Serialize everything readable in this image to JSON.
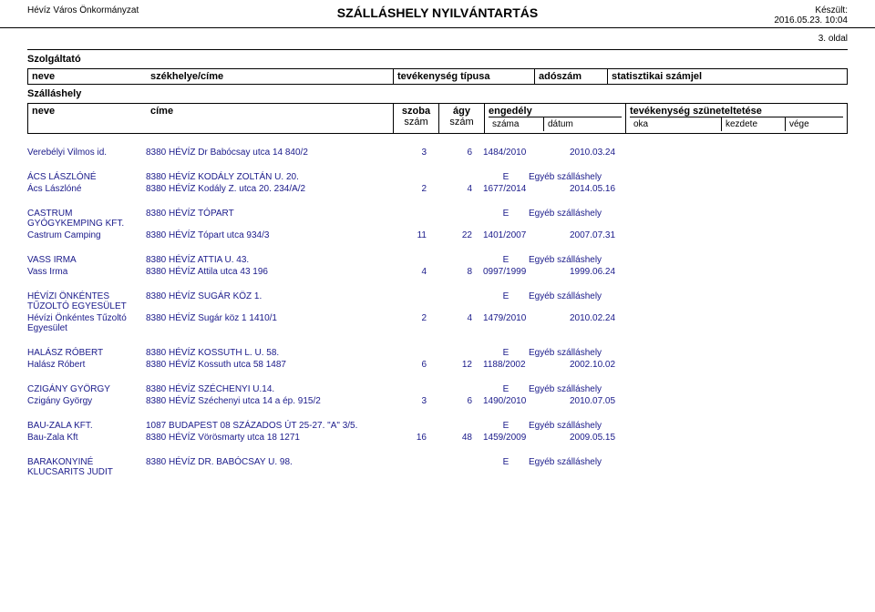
{
  "header": {
    "org": "Hévíz Város Önkormányzat",
    "title": "SZÁLLÁSHELY NYILVÁNTARTÁS",
    "made_label": "Készült:",
    "made_date": "2016.05.23. 10:04",
    "page": "3. oldal"
  },
  "table_header": {
    "szolgaltato": "Szolgáltató",
    "neve": "neve",
    "szekhelye": "székhelye/címe",
    "tevekenyseg": "tevékenység típusa",
    "adoszam": "adószám",
    "stat": "statisztikai számjel",
    "szallashely": "Szálláshely",
    "cime": "címe",
    "szoba": "szoba",
    "szoba2": "szám",
    "agy": "ágy",
    "agy2": "szám",
    "engedely": "engedély",
    "szama": "száma",
    "datum": "dátum",
    "szunet": "tevékenység szüneteltetése",
    "oka": "oka",
    "kezdete": "kezdete",
    "vege": "vége"
  },
  "groups": [
    {
      "r1": {
        "name": "Verebélyi Vilmos id.",
        "addr": "8380 HÉVÍZ Dr Babócsay utca 14  840/2",
        "n1": "3",
        "n2": "6",
        "eng": "1484/2010",
        "date": "2010.03.24"
      }
    },
    {
      "r0": {
        "name": "ÁCS LÁSZLÓNÉ",
        "addr": "8380 HÉVÍZ KODÁLY ZOLTÁN U. 20.",
        "mark": "E",
        "etype": "Egyéb szálláshely"
      },
      "r1": {
        "name": "Ács Lászlóné",
        "addr": "8380 HÉVÍZ Kodály Z. utca 20.  234/A/2",
        "n1": "2",
        "n2": "4",
        "eng": "1677/2014",
        "date": "2014.05.16"
      }
    },
    {
      "r0": {
        "name": "CASTRUM GYÓGYKEMPING KFT.",
        "addr": "8380 HÉVÍZ TÓPART",
        "mark": "E",
        "etype": "Egyéb szálláshely"
      },
      "r1": {
        "name": "Castrum Camping",
        "addr": "8380 HÉVÍZ Tópart utca  934/3",
        "n1": "11",
        "n2": "22",
        "eng": "1401/2007",
        "date": "2007.07.31"
      }
    },
    {
      "r0": {
        "name": "VASS IRMA",
        "addr": "8380 HÉVÍZ ATTIA U. 43.",
        "mark": "E",
        "etype": "Egyéb szálláshely"
      },
      "r1": {
        "name": "Vass Irma",
        "addr": "8380 HÉVÍZ Attila utca 43  196",
        "n1": "4",
        "n2": "8",
        "eng": "0997/1999",
        "date": "1999.06.24"
      }
    },
    {
      "r0": {
        "name": "HÉVÍZI ÖNKÉNTES TŰZOLTÓ EGYESÜLET",
        "addr": "8380 HÉVÍZ SUGÁR  KÖZ 1.",
        "mark": "E",
        "etype": "Egyéb szálláshely"
      },
      "r1": {
        "name": "Hévízi Önkéntes Tűzoltó Egyesület",
        "addr": "8380 HÉVÍZ Sugár köz 1  1410/1",
        "n1": "2",
        "n2": "4",
        "eng": "1479/2010",
        "date": "2010.02.24"
      }
    },
    {
      "r0": {
        "name": "HALÁSZ RÓBERT",
        "addr": "8380 HÉVÍZ KOSSUTH L. U. 58.",
        "mark": "E",
        "etype": "Egyéb szálláshely"
      },
      "r1": {
        "name": "Halász Róbert",
        "addr": "8380 HÉVÍZ Kossuth utca 58  1487",
        "n1": "6",
        "n2": "12",
        "eng": "1188/2002",
        "date": "2002.10.02"
      }
    },
    {
      "r0": {
        "name": "CZIGÁNY GYÖRGY",
        "addr": "8380 HÉVÍZ SZÉCHENYI U.14.",
        "mark": "E",
        "etype": "Egyéb szálláshely"
      },
      "r1": {
        "name": "Czigány György",
        "addr": "8380 HÉVÍZ Széchenyi utca 14 a ép.  915/2",
        "n1": "3",
        "n2": "6",
        "eng": "1490/2010",
        "date": "2010.07.05"
      }
    },
    {
      "r0": {
        "name": "BAU-ZALA KFT.",
        "addr": "1087 BUDAPEST 08 SZÁZADOS ÚT 25-27.  \"A\" 3/5.",
        "mark": "E",
        "etype": "Egyéb szálláshely"
      },
      "r1": {
        "name": "Bau-Zala Kft",
        "addr": "8380 HÉVÍZ Vörösmarty utca 18  1271",
        "n1": "16",
        "n2": "48",
        "eng": "1459/2009",
        "date": "2009.05.15"
      }
    },
    {
      "r0": {
        "name": "BARAKONYINÉ KLUCSARITS JUDIT",
        "addr": "8380 HÉVÍZ DR. BABÓCSAY U. 98.",
        "mark": "E",
        "etype": "Egyéb szálláshely"
      }
    }
  ]
}
